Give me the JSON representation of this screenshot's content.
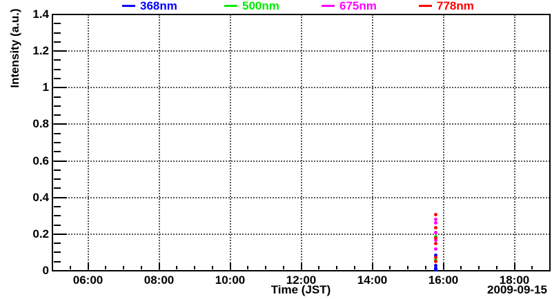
{
  "chart_data": {
    "type": "scatter",
    "title": "",
    "x_axis": {
      "label": "Time (JST)",
      "date_label": "2009-09-15",
      "range_hours": [
        5,
        19
      ],
      "major_ticks": [
        {
          "hour": 6,
          "label": "06:00"
        },
        {
          "hour": 8,
          "label": "08:00"
        },
        {
          "hour": 10,
          "label": "10:00"
        },
        {
          "hour": 12,
          "label": "12:00"
        },
        {
          "hour": 14,
          "label": "14:00"
        },
        {
          "hour": 16,
          "label": "16:00"
        },
        {
          "hour": 18,
          "label": "18:00"
        }
      ],
      "minor_tick_step_hours": 0.5,
      "grid": true
    },
    "y_axis": {
      "label": "Intensity (a.u.)",
      "min": 0,
      "max": 1.4,
      "major_tick_step": 0.2,
      "minor_tick_step": 0.05,
      "major_ticks": [
        {
          "value": 0,
          "label": "0"
        },
        {
          "value": 0.2,
          "label": "0.2"
        },
        {
          "value": 0.4,
          "label": "0.4"
        },
        {
          "value": 0.6,
          "label": "0.6"
        },
        {
          "value": 0.8,
          "label": "0.8"
        },
        {
          "value": 1,
          "label": "1"
        },
        {
          "value": 1.2,
          "label": "1.2"
        },
        {
          "value": 1.4,
          "label": "1.4"
        }
      ],
      "grid": true
    },
    "legend": [
      {
        "label": "368nm",
        "color": "#0000ff"
      },
      {
        "label": "500nm",
        "color": "#00ee00"
      },
      {
        "label": "675nm",
        "color": "#ff00ff"
      },
      {
        "label": "778nm",
        "color": "#ff0000"
      }
    ],
    "series": [
      {
        "name": "368nm",
        "color": "#0000ff",
        "points": [
          [
            15.79,
            0.086
          ],
          [
            15.79,
            0.03
          ],
          [
            15.79,
            0.015
          ],
          [
            15.79,
            0.004
          ]
        ]
      },
      {
        "name": "500nm",
        "color": "#00ee00",
        "points": [
          [
            15.79,
            0.188
          ],
          [
            15.79,
            0.06
          ]
        ]
      },
      {
        "name": "675nm",
        "color": "#ff00ff",
        "points": [
          [
            15.79,
            0.28
          ],
          [
            15.79,
            0.262
          ],
          [
            15.79,
            0.207
          ],
          [
            15.79,
            0.166
          ],
          [
            15.79,
            0.118
          ]
        ]
      },
      {
        "name": "778nm",
        "color": "#ff0000",
        "points": [
          [
            15.79,
            0.306
          ],
          [
            15.79,
            0.235
          ],
          [
            15.79,
            0.177
          ],
          [
            15.79,
            0.15
          ],
          [
            15.79,
            0.075
          ],
          [
            15.79,
            0.051
          ]
        ]
      }
    ]
  }
}
